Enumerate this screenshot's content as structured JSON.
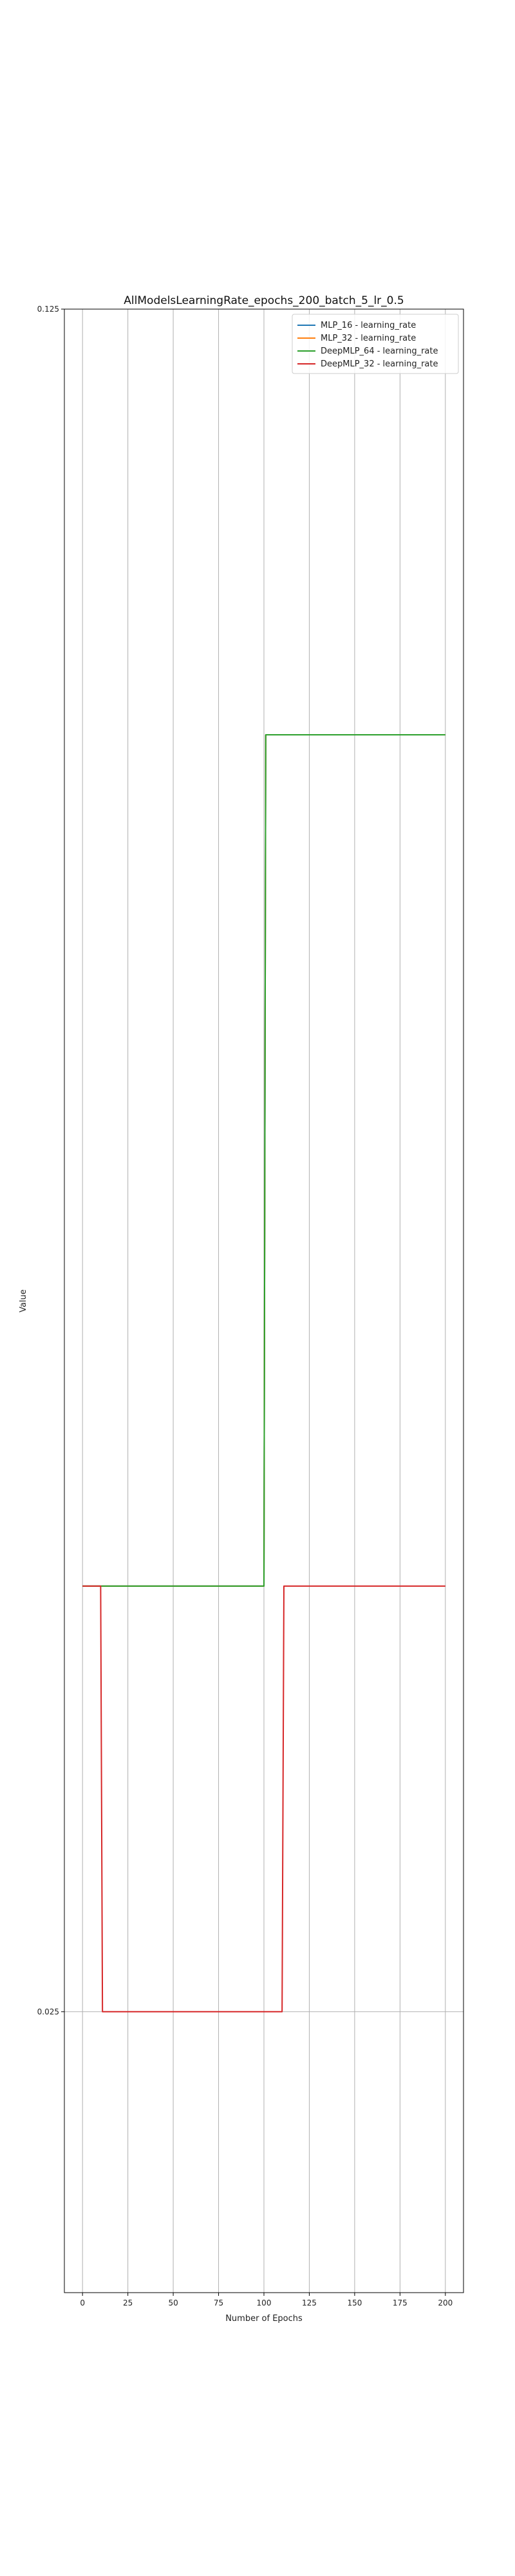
{
  "chart_data": {
    "type": "line",
    "title": "AllModelsLearningRate_epochs_200_batch_5_lr_0.5",
    "xlabel": "Number of Epochs",
    "ylabel": "Value",
    "xlim": [
      -10,
      210
    ],
    "ylim": [
      0.0085,
      0.125
    ],
    "x_ticks": [
      0,
      25,
      50,
      75,
      100,
      125,
      150,
      175,
      200
    ],
    "y_ticks": [
      0.025,
      0.125
    ],
    "y_tick_labels": [
      "0.025",
      "0.125"
    ],
    "grid": true,
    "legend_position": "top-right",
    "series": [
      {
        "name": "MLP_16 - learning_rate",
        "color": "#1f77b4",
        "x": [
          0,
          100,
          101,
          200
        ],
        "y": [
          0.05,
          0.05,
          0.1,
          0.1
        ]
      },
      {
        "name": "MLP_32 - learning_rate",
        "color": "#ff7f0e",
        "x": [
          0,
          100,
          101,
          200
        ],
        "y": [
          0.05,
          0.05,
          0.1,
          0.1
        ]
      },
      {
        "name": "DeepMLP_64 - learning_rate",
        "color": "#2ca02c",
        "x": [
          0,
          100,
          101,
          200
        ],
        "y": [
          0.05,
          0.05,
          0.1,
          0.1
        ]
      },
      {
        "name": "DeepMLP_32 - learning_rate",
        "color": "#d62728",
        "x": [
          0,
          10,
          11,
          110,
          111,
          200
        ],
        "y": [
          0.05,
          0.05,
          0.025,
          0.025,
          0.05,
          0.05
        ]
      }
    ]
  }
}
